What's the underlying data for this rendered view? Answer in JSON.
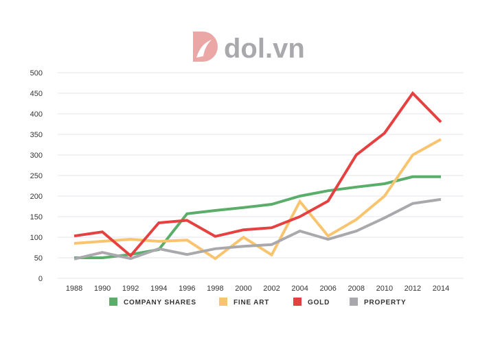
{
  "logo": {
    "text": "dol.vn",
    "color": "#e8a3a3"
  },
  "chart_data": {
    "type": "line",
    "title": "",
    "xlabel": "",
    "ylabel": "",
    "x": [
      1988,
      1990,
      1992,
      1994,
      1996,
      1998,
      2000,
      2002,
      2004,
      2006,
      2008,
      2010,
      2012,
      2014
    ],
    "ylim": [
      0,
      500
    ],
    "yticks": [
      0,
      50,
      100,
      150,
      200,
      250,
      300,
      350,
      400,
      450,
      500
    ],
    "grid": true,
    "legend_position": "bottom",
    "series": [
      {
        "name": "COMPANY SHARES",
        "color": "#5aae6a",
        "values": [
          50,
          50,
          58,
          70,
          157,
          165,
          172,
          180,
          200,
          213,
          222,
          230,
          247,
          247
        ]
      },
      {
        "name": "FINE ART",
        "color": "#f9c46f",
        "values": [
          85,
          90,
          95,
          90,
          93,
          48,
          100,
          57,
          187,
          103,
          143,
          200,
          300,
          338
        ]
      },
      {
        "name": "GOLD",
        "color": "#e54141",
        "values": [
          103,
          113,
          55,
          135,
          141,
          102,
          118,
          123,
          150,
          188,
          300,
          353,
          450,
          380
        ]
      },
      {
        "name": "PROPERTY",
        "color": "#a9a8ad",
        "values": [
          47,
          63,
          48,
          72,
          58,
          72,
          78,
          82,
          115,
          95,
          115,
          147,
          182,
          192
        ]
      }
    ]
  }
}
